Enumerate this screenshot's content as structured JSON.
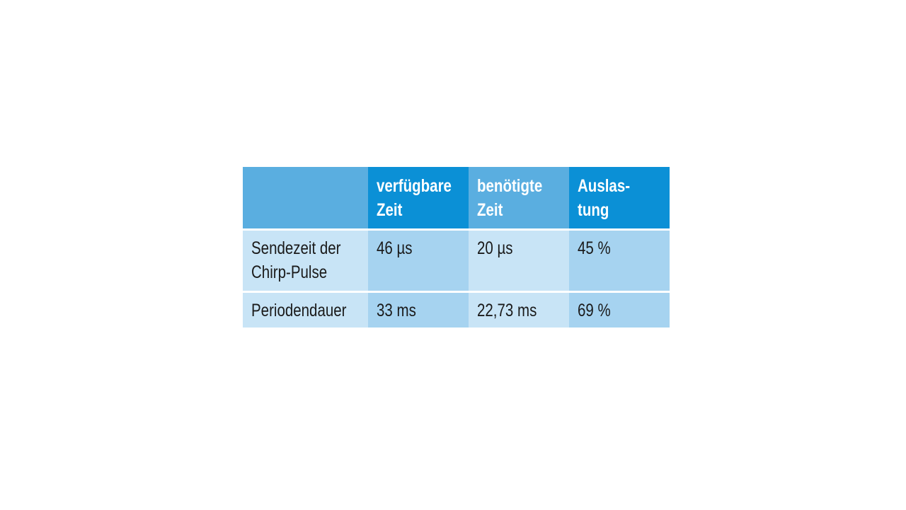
{
  "table": {
    "headers": [
      "",
      "verfügbare\nZeit",
      "benötigte\nZeit",
      "Auslas-\ntung"
    ],
    "header_lines": [
      [
        ""
      ],
      [
        "verfügbare",
        "Zeit"
      ],
      [
        "benötigte",
        "Zeit"
      ],
      [
        "Auslas-",
        "tung"
      ]
    ],
    "rows": [
      {
        "label_lines": [
          "Sendezeit der",
          "Chirp-Pulse"
        ],
        "values": [
          "46 µs",
          "20 µs",
          "45 %"
        ]
      },
      {
        "label_lines": [
          "Periodendauer"
        ],
        "values": [
          "33 ms",
          "22,73 ms",
          "69 %"
        ]
      }
    ]
  },
  "colors": {
    "header_dark": "#0b90d6",
    "header_light": "#5aaee0",
    "body_light": "#c8e4f6",
    "body_dark": "#a6d3f0"
  }
}
